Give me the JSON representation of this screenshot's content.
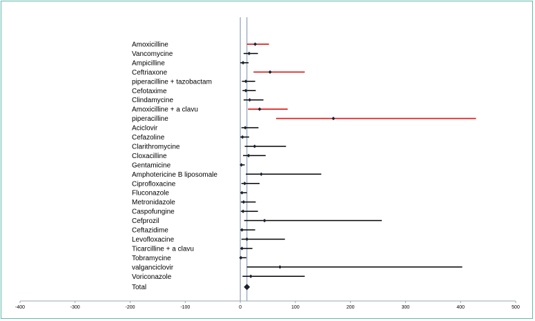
{
  "chart_data": {
    "type": "forest",
    "title": "",
    "xlabel": "",
    "ylabel": "",
    "xlim": [
      -400,
      500
    ],
    "xticks": [
      -400,
      -300,
      -200,
      -100,
      0,
      100,
      200,
      300,
      400,
      500
    ],
    "reference_lines": [
      0,
      12
    ],
    "colors": {
      "significant": "#e01f1f",
      "neutral": "#000000",
      "marker": "#1a2330",
      "reference": "#8aa0b6"
    },
    "rows": [
      {
        "name": "Amoxicilline",
        "estimate": 27,
        "low": 12,
        "high": 52,
        "color": "#e01f1f"
      },
      {
        "name": "Vancomycine",
        "estimate": 16,
        "low": 6,
        "high": 32,
        "color": "#000000"
      },
      {
        "name": "Ampicilline",
        "estimate": 5,
        "low": 0,
        "high": 15,
        "color": "#000000"
      },
      {
        "name": "Ceftriaxone",
        "estimate": 54,
        "low": 24,
        "high": 117,
        "color": "#e01f1f"
      },
      {
        "name": "piperacilline + tazobactam",
        "estimate": 10,
        "low": 3,
        "high": 27,
        "color": "#000000"
      },
      {
        "name": "Cefotaxime",
        "estimate": 10,
        "low": 4,
        "high": 28,
        "color": "#000000"
      },
      {
        "name": "Clindamycine",
        "estimate": 17,
        "low": 6,
        "high": 42,
        "color": "#000000"
      },
      {
        "name": "Amoxicilline + a clavu",
        "estimate": 35,
        "low": 14,
        "high": 86,
        "color": "#e01f1f"
      },
      {
        "name": "piperacilline",
        "estimate": 169,
        "low": 65,
        "high": 428,
        "color": "#e01f1f"
      },
      {
        "name": "Aciclovir",
        "estimate": 9,
        "low": 2,
        "high": 33,
        "color": "#000000"
      },
      {
        "name": "Cefazoline",
        "estimate": 4,
        "low": 0,
        "high": 16,
        "color": "#000000"
      },
      {
        "name": "Clarithromycine",
        "estimate": 26,
        "low": 8,
        "high": 83,
        "color": "#000000"
      },
      {
        "name": "Cloxacilline",
        "estimate": 15,
        "low": 5,
        "high": 46,
        "color": "#000000"
      },
      {
        "name": "Gentamicine",
        "estimate": 2,
        "low": 0,
        "high": 8,
        "color": "#000000"
      },
      {
        "name": "Amphotericine B liposomale",
        "estimate": 38,
        "low": 10,
        "high": 147,
        "color": "#000000"
      },
      {
        "name": "Ciprofloxacine",
        "estimate": 8,
        "low": 2,
        "high": 35,
        "color": "#000000"
      },
      {
        "name": "Fluconazole",
        "estimate": 3,
        "low": 0,
        "high": 12,
        "color": "#000000"
      },
      {
        "name": "Metronidazole",
        "estimate": 6,
        "low": 1,
        "high": 28,
        "color": "#000000"
      },
      {
        "name": "Caspofungine",
        "estimate": 5,
        "low": 1,
        "high": 32,
        "color": "#000000"
      },
      {
        "name": "Cefprozil",
        "estimate": 44,
        "low": 7,
        "high": 257,
        "color": "#000000"
      },
      {
        "name": "Ceftazidime",
        "estimate": 3,
        "low": 0,
        "high": 27,
        "color": "#000000"
      },
      {
        "name": "Levofloxacine",
        "estimate": 12,
        "low": 2,
        "high": 81,
        "color": "#000000"
      },
      {
        "name": "Ticarcilline + a clavu",
        "estimate": 3,
        "low": 0,
        "high": 22,
        "color": "#000000"
      },
      {
        "name": "Tobramycine",
        "estimate": 1,
        "low": 0,
        "high": 11,
        "color": "#000000"
      },
      {
        "name": "valganciclovir",
        "estimate": 72,
        "low": 12,
        "high": 403,
        "color": "#000000"
      },
      {
        "name": "Voriconazole",
        "estimate": 19,
        "low": 4,
        "high": 117,
        "color": "#000000"
      },
      {
        "name": "Total",
        "estimate": 12,
        "low": 12,
        "high": 12,
        "color": "#000000",
        "summary": true
      }
    ]
  }
}
